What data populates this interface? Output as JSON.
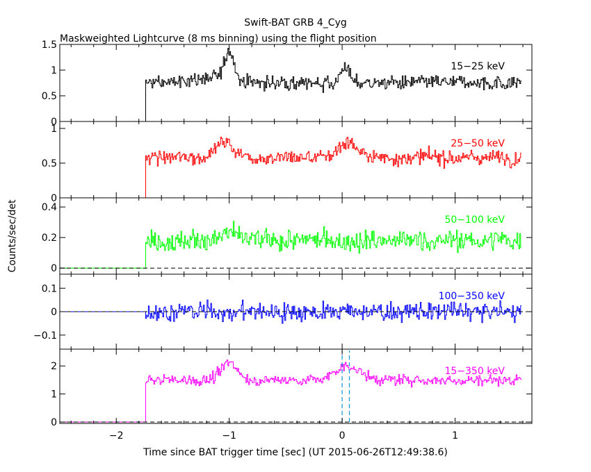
{
  "title": "Swift-BAT GRB 4_Cyg",
  "subtitle": "Maskweighted Lightcurve (8 ms binning) using the flight position",
  "ylabel": "Counts/sec/det",
  "xlabel": "Time since BAT trigger time [sec] (UT 2015-06-26T12:49:38.6)",
  "colors": {
    "black": "#000000",
    "red": "#ff0000",
    "green": "#00ff00",
    "blue": "#0000ff",
    "magenta": "#ff00ff",
    "dashed_zero": "#000000",
    "trigger_lines": "#1a9bd7"
  },
  "chart_data": {
    "type": "line",
    "title": "Swift-BAT GRB 4_Cyg",
    "subtitle": "Maskweighted Lightcurve (8 ms binning) using the flight position",
    "xlabel": "Time since BAT trigger time [sec] (UT 2015-06-26T12:49:38.6)",
    "ylabel": "Counts/sec/det",
    "xlim": [
      -2.5,
      1.68
    ],
    "x_ticks": [
      -2,
      -1,
      0,
      1
    ],
    "x_tick_labels": [
      "−2",
      "−1",
      "0",
      "1"
    ],
    "bin_width_sec": 0.008,
    "data_start": -2.5,
    "signal_start": -1.74,
    "data_end": 1.58,
    "trigger_lines_x": [
      0.0,
      0.064
    ],
    "grid": false,
    "panels": [
      {
        "name": "15−25 keV",
        "label": "15−25 keV",
        "color": "#000000",
        "ylim": [
          0,
          1.5
        ],
        "y_ticks": [
          0,
          0.5,
          1,
          1.5
        ],
        "y_tick_labels": [
          "0",
          "0.5",
          "1",
          "1.5"
        ],
        "base_level": 0.75,
        "noise": 0.17,
        "show_trigger_lines": false,
        "features": [
          {
            "x": -1.0,
            "width": 0.06,
            "height": 0.55
          },
          {
            "x": -1.15,
            "width": 0.25,
            "height": 0.1
          },
          {
            "x": 0.02,
            "width": 0.05,
            "height": 0.35
          }
        ]
      },
      {
        "name": "25−50 keV",
        "label": "25−50 keV",
        "color": "#ff0000",
        "ylim": [
          0,
          1.1
        ],
        "y_ticks": [
          0,
          0.5,
          1
        ],
        "y_tick_labels": [
          "0",
          "0.5",
          "1"
        ],
        "base_level": 0.58,
        "noise": 0.13,
        "show_trigger_lines": false,
        "features": [
          {
            "x": -1.05,
            "width": 0.12,
            "height": 0.22
          },
          {
            "x": 0.05,
            "width": 0.12,
            "height": 0.22
          }
        ]
      },
      {
        "name": "50−100 keV",
        "label": "50−100 keV",
        "color": "#00ff00",
        "ylim": [
          -0.04,
          0.46
        ],
        "y_ticks": [
          0,
          0.2,
          0.4
        ],
        "y_tick_labels": [
          "0",
          "0.2",
          "0.4"
        ],
        "base_level": 0.18,
        "noise": 0.085,
        "show_trigger_lines": false,
        "features": [
          {
            "x": -1.0,
            "width": 0.1,
            "height": 0.05
          }
        ]
      },
      {
        "name": "100−350 keV",
        "label": "100−350 keV",
        "color": "#0000ff",
        "ylim": [
          -0.16,
          0.16
        ],
        "y_ticks": [
          -0.1,
          0,
          0.1
        ],
        "y_tick_labels": [
          "−0.1",
          "0",
          "0.1"
        ],
        "base_level": 0.0,
        "noise": 0.05,
        "show_trigger_lines": false,
        "features": []
      },
      {
        "name": "15−350 keV",
        "label": "15−350 keV",
        "color": "#ff00ff",
        "ylim": [
          -0.05,
          2.6
        ],
        "y_ticks": [
          0,
          1,
          2
        ],
        "y_tick_labels": [
          "0",
          "1",
          "2"
        ],
        "base_level": 1.5,
        "noise": 0.24,
        "show_trigger_lines": true,
        "features": [
          {
            "x": -1.0,
            "width": 0.1,
            "height": 0.6
          },
          {
            "x": 0.05,
            "width": 0.15,
            "height": 0.5
          }
        ]
      }
    ]
  }
}
